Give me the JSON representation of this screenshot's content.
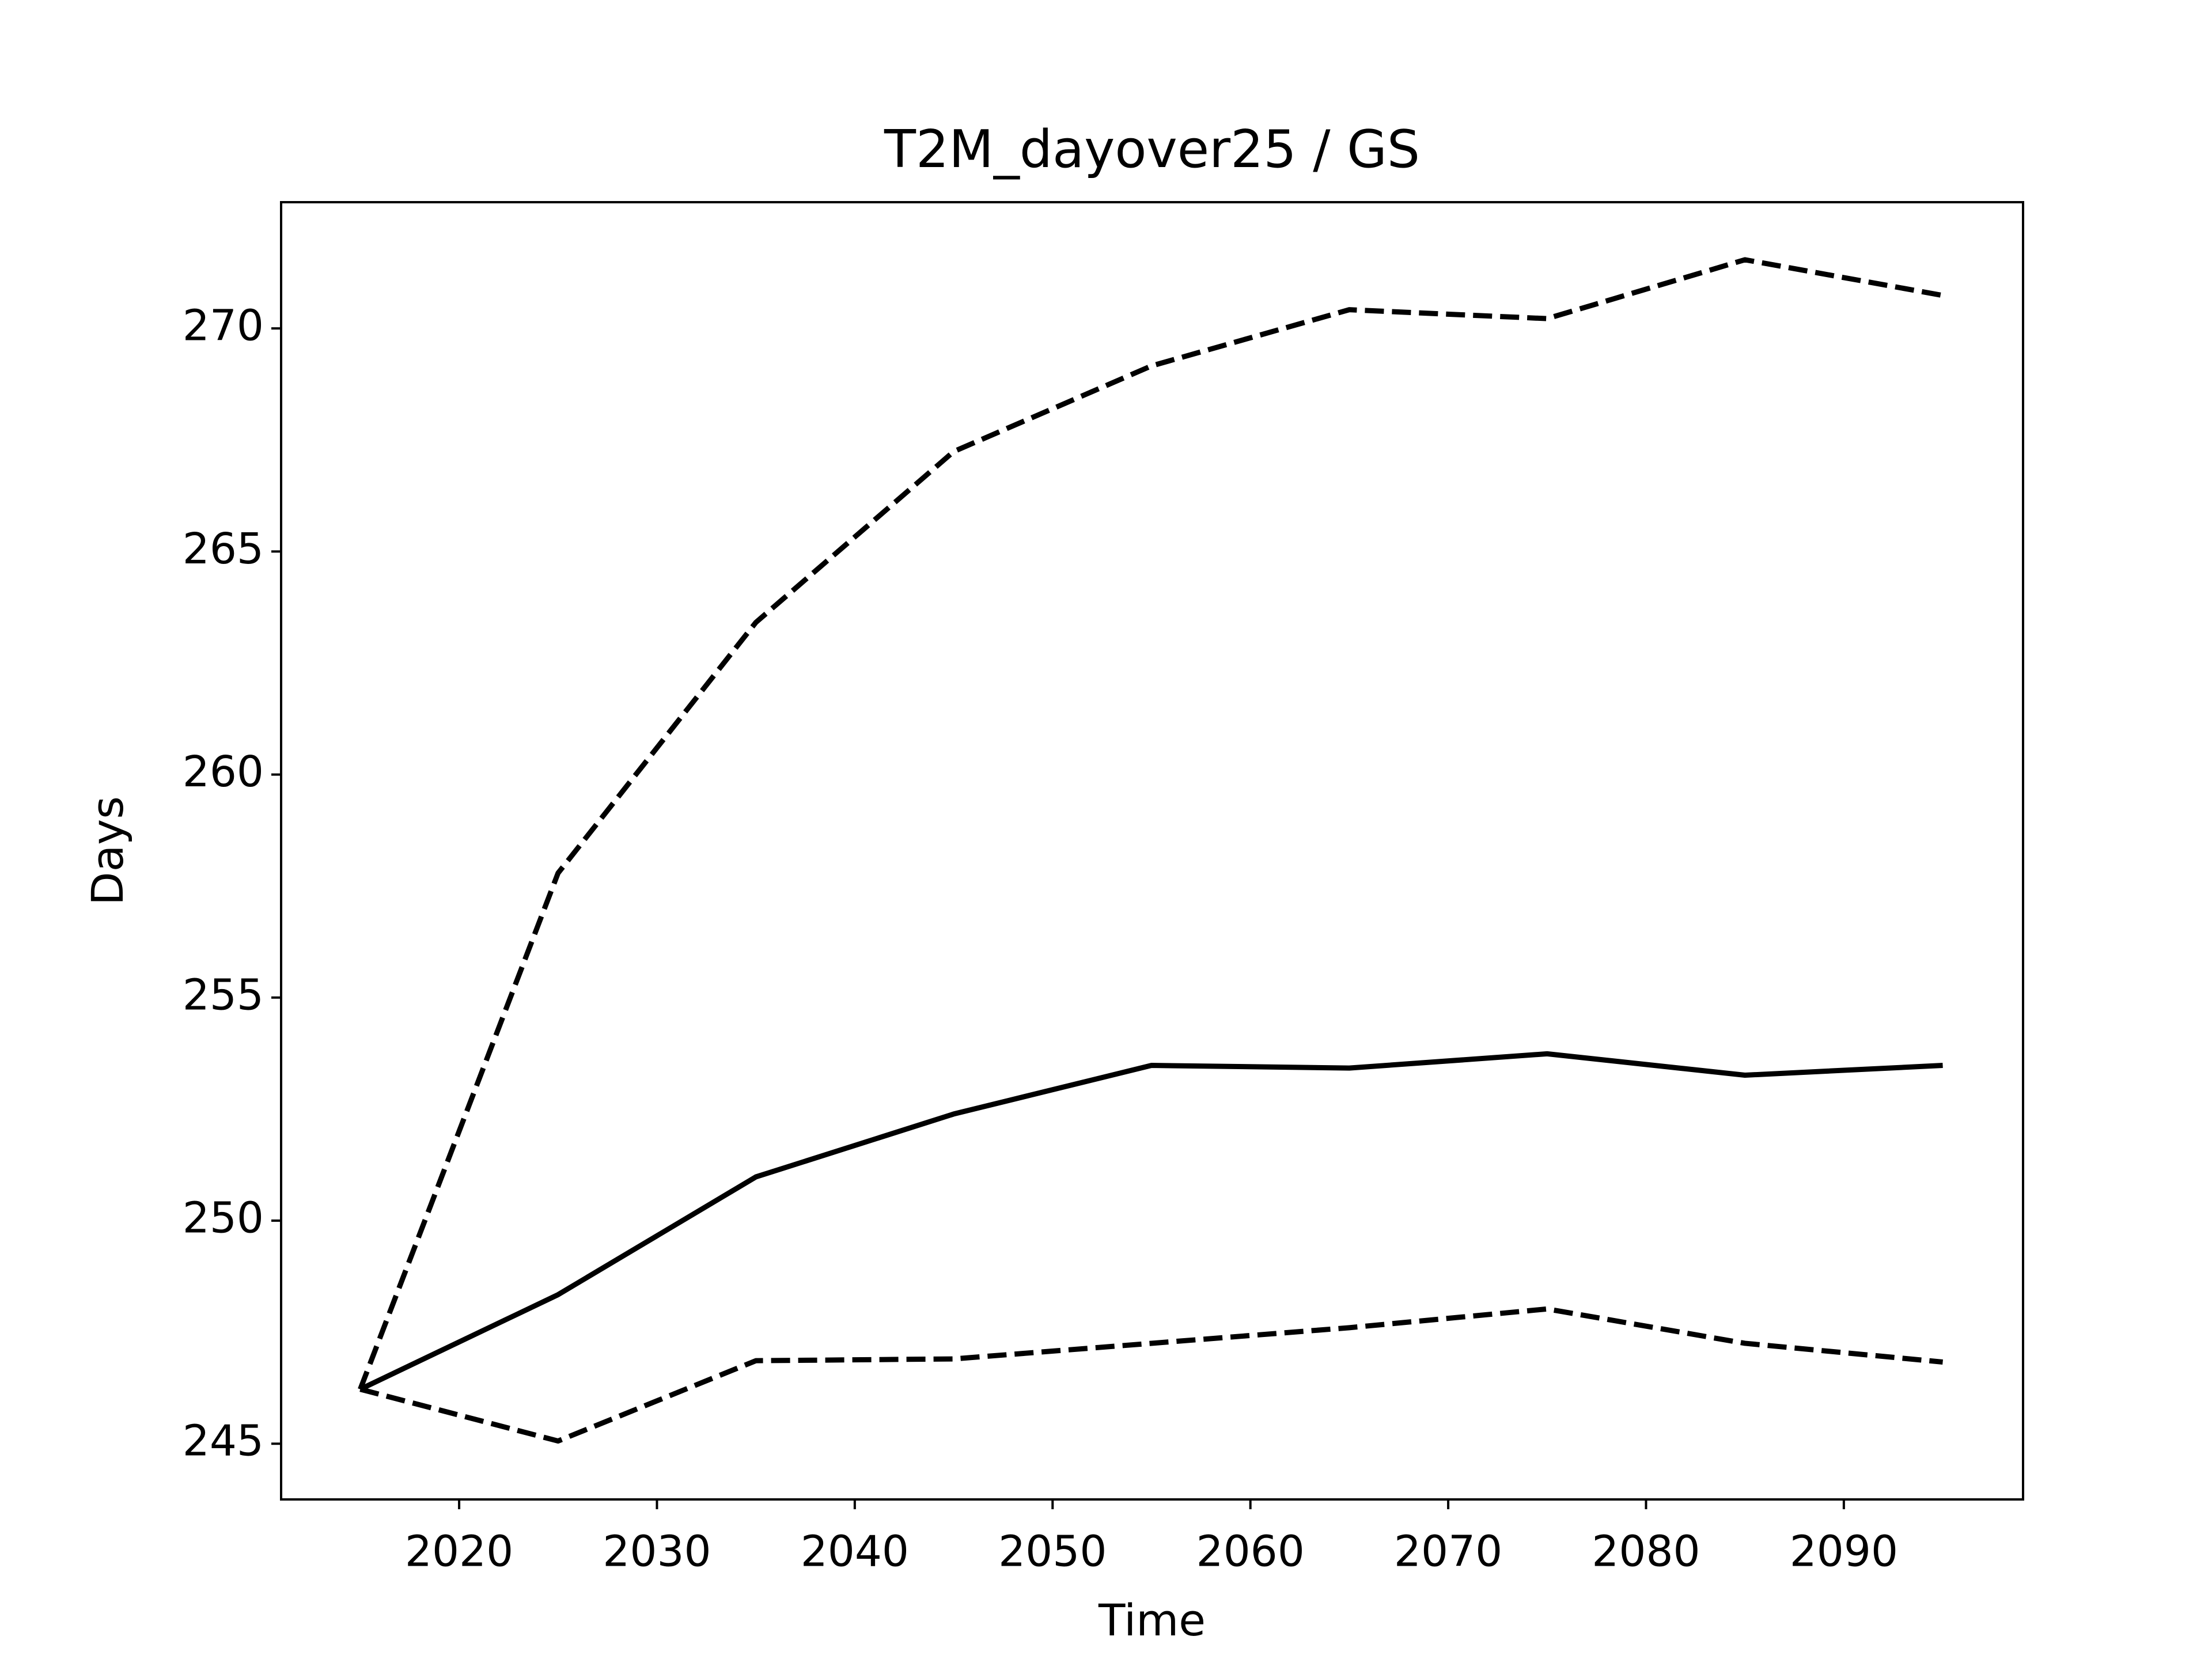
{
  "chart_data": {
    "type": "line",
    "title": "T2M_dayover25 / GS",
    "x_label": "Time",
    "y_label": "Days",
    "x": [
      2015,
      2025,
      2035,
      2045,
      2055,
      2065,
      2075,
      2085,
      2095
    ],
    "series": [
      {
        "color": "#000000",
        "linestyle": "solid",
        "values": [
          246.22,
          248.34,
          250.98,
          252.39,
          253.48,
          253.42,
          253.74,
          253.26,
          253.48
        ]
      },
      {
        "color": "#000000",
        "linestyle": "dashed",
        "values": [
          246.22,
          257.79,
          263.41,
          267.24,
          269.16,
          270.42,
          270.22,
          271.54,
          270.74
        ]
      },
      {
        "color": "#000000",
        "linestyle": "dashed",
        "values": [
          246.22,
          245.06,
          246.86,
          246.9,
          247.25,
          247.6,
          248.02,
          247.25,
          246.83
        ]
      }
    ],
    "xlim": [
      2011.0,
      2099.06
    ],
    "ylim": [
      243.75,
      272.83
    ],
    "xticks": [
      2020,
      2030,
      2040,
      2050,
      2060,
      2070,
      2080,
      2090
    ],
    "yticks": [
      245,
      250,
      255,
      260,
      265,
      270
    ],
    "grid": false
  }
}
